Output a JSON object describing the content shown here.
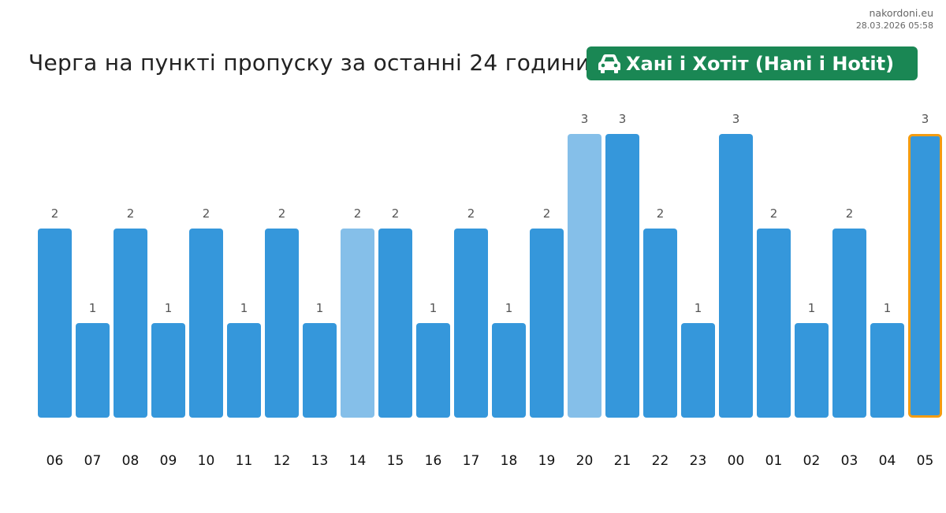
{
  "header": {
    "site": "nakordoni.eu",
    "timestamp": "28.03.2026 05:58",
    "title": "Черга на пункті пропуску за останні 24 години",
    "badge": {
      "icon": "car-icon",
      "label": "Хані і Хотіт (Hani i Hotit)",
      "color": "#1a8754"
    }
  },
  "chart_data": {
    "type": "bar",
    "categories": [
      "06",
      "07",
      "08",
      "09",
      "10",
      "11",
      "12",
      "13",
      "14",
      "15",
      "16",
      "17",
      "18",
      "19",
      "20",
      "21",
      "22",
      "23",
      "00",
      "01",
      "02",
      "03",
      "04",
      "05"
    ],
    "values": [
      2,
      1,
      2,
      1,
      2,
      1,
      2,
      1,
      2,
      2,
      1,
      2,
      1,
      2,
      3,
      3,
      2,
      1,
      3,
      2,
      1,
      2,
      1,
      3
    ],
    "ylim": [
      0,
      3
    ],
    "grid": false,
    "colors": {
      "bar": "#3597db",
      "bar_light": "#85bfe9",
      "highlight_border": "#f39c12"
    },
    "light_bars": [
      "14",
      "20"
    ],
    "highlighted": "05"
  }
}
